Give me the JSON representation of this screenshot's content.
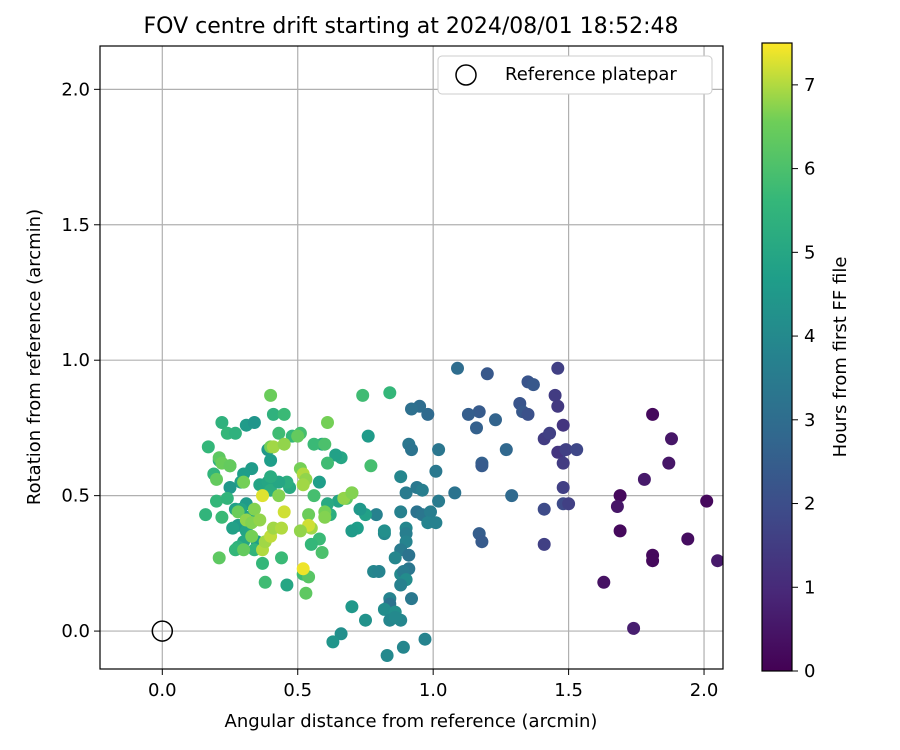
{
  "chart_data": {
    "type": "scatter",
    "title": "FOV centre drift starting at 2024/08/01 18:52:48",
    "xlabel": "Angular distance from reference (arcmin)",
    "ylabel": "Rotation from reference (arcmin)",
    "xlim": [
      -0.23,
      2.07
    ],
    "ylim": [
      -0.14,
      2.16
    ],
    "xticks": [
      0.0,
      0.5,
      1.0,
      1.5,
      2.0
    ],
    "yticks": [
      0.0,
      0.5,
      1.0,
      1.5,
      2.0
    ],
    "xtick_labels": [
      "0.0",
      "0.5",
      "1.0",
      "1.5",
      "2.0"
    ],
    "ytick_labels": [
      "0.0",
      "0.5",
      "1.0",
      "1.5",
      "2.0"
    ],
    "grid": true,
    "legend": {
      "placement": "top-right",
      "entries": [
        "Reference platepar"
      ]
    },
    "colorbar": {
      "label": "Hours from first FF file",
      "range": [
        0,
        7.5
      ],
      "ticks": [
        0,
        1,
        2,
        3,
        4,
        5,
        6,
        7
      ],
      "tick_labels": [
        "0",
        "1",
        "2",
        "3",
        "4",
        "5",
        "6",
        "7"
      ],
      "colormap": "viridis"
    },
    "reference_point": {
      "name": "Reference platepar",
      "x": 0.0,
      "y": 0.0
    },
    "series": [
      {
        "points": [
          [
            1.81,
            0.8,
            0.2
          ],
          [
            1.88,
            0.71,
            0.5
          ],
          [
            1.87,
            0.62,
            0.5
          ],
          [
            1.78,
            0.56,
            0.6
          ],
          [
            1.69,
            0.5,
            0.2
          ],
          [
            1.68,
            0.46,
            0.5
          ],
          [
            2.01,
            0.48,
            0.2
          ],
          [
            2.05,
            0.26,
            0.6
          ],
          [
            1.69,
            0.37,
            0.2
          ],
          [
            1.81,
            0.28,
            0.2
          ],
          [
            1.81,
            0.26,
            0.2
          ],
          [
            1.94,
            0.34,
            0.3
          ],
          [
            1.63,
            0.18,
            0.4
          ],
          [
            1.74,
            0.01,
            0.7
          ],
          [
            1.46,
            0.97,
            1.6
          ],
          [
            1.45,
            0.87,
            1.5
          ],
          [
            1.46,
            0.83,
            1.4
          ],
          [
            1.48,
            0.76,
            1.3
          ],
          [
            1.41,
            0.71,
            1.5
          ],
          [
            1.43,
            0.73,
            1.6
          ],
          [
            1.47,
            0.66,
            1.8
          ],
          [
            1.46,
            0.66,
            1.3
          ],
          [
            1.48,
            0.62,
            1.5
          ],
          [
            1.49,
            0.67,
            1.6
          ],
          [
            1.53,
            0.67,
            1.8
          ],
          [
            1.48,
            0.53,
            1.6
          ],
          [
            1.48,
            0.47,
            1.9
          ],
          [
            1.5,
            0.47,
            1.6
          ],
          [
            1.41,
            0.45,
            1.9
          ],
          [
            1.41,
            0.32,
            1.6
          ],
          [
            1.35,
            0.92,
            2.2
          ],
          [
            1.37,
            0.91,
            2.3
          ],
          [
            1.32,
            0.84,
            2.2
          ],
          [
            1.33,
            0.81,
            2.3
          ],
          [
            1.35,
            0.8,
            2.1
          ],
          [
            1.2,
            0.95,
            2.3
          ],
          [
            1.17,
            0.81,
            2.4
          ],
          [
            1.13,
            0.8,
            2.5
          ],
          [
            1.16,
            0.75,
            2.6
          ],
          [
            1.23,
            0.78,
            2.7
          ],
          [
            1.18,
            0.62,
            2.6
          ],
          [
            1.18,
            0.61,
            2.4
          ],
          [
            1.27,
            0.67,
            2.8
          ],
          [
            1.29,
            0.5,
            2.9
          ],
          [
            1.17,
            0.36,
            2.5
          ],
          [
            1.18,
            0.33,
            2.4
          ],
          [
            1.09,
            0.97,
            3.0
          ],
          [
            1.08,
            0.51,
            3.2
          ],
          [
            1.02,
            0.67,
            3.3
          ],
          [
            1.01,
            0.59,
            3.4
          ],
          [
            1.02,
            0.48,
            3.5
          ],
          [
            0.98,
            0.8,
            2.9
          ],
          [
            0.95,
            0.83,
            3.0
          ],
          [
            0.92,
            0.82,
            3.1
          ],
          [
            0.91,
            0.69,
            3.3
          ],
          [
            0.92,
            0.67,
            3.2
          ],
          [
            0.9,
            0.51,
            3.5
          ],
          [
            0.94,
            0.53,
            3.4
          ],
          [
            0.96,
            0.52,
            3.6
          ],
          [
            0.94,
            0.44,
            3.2
          ],
          [
            0.96,
            0.43,
            3.3
          ],
          [
            0.99,
            0.44,
            3.6
          ],
          [
            0.98,
            0.4,
            3.8
          ],
          [
            1.01,
            0.4,
            3.7
          ],
          [
            0.88,
            0.57,
            3.9
          ],
          [
            0.88,
            0.44,
            3.7
          ],
          [
            0.9,
            0.38,
            3.9
          ],
          [
            0.9,
            0.36,
            3.6
          ],
          [
            0.9,
            0.33,
            3.8
          ],
          [
            0.88,
            0.3,
            3.5
          ],
          [
            0.91,
            0.28,
            3.2
          ],
          [
            0.86,
            0.27,
            3.9
          ],
          [
            0.91,
            0.23,
            3.3
          ],
          [
            0.88,
            0.21,
            4.0
          ],
          [
            0.89,
            0.22,
            3.5
          ],
          [
            0.9,
            0.19,
            4.1
          ],
          [
            0.88,
            0.17,
            3.7
          ],
          [
            0.84,
            0.12,
            3.8
          ],
          [
            0.84,
            0.1,
            3.2
          ],
          [
            0.82,
            0.08,
            4.1
          ],
          [
            0.78,
            0.22,
            3.9
          ],
          [
            0.8,
            0.22,
            3.8
          ],
          [
            0.82,
            0.36,
            4.0
          ],
          [
            0.82,
            0.37,
            4.2
          ],
          [
            0.79,
            0.43,
            3.7
          ],
          [
            0.86,
            0.07,
            4.2
          ],
          [
            0.88,
            0.04,
            3.9
          ],
          [
            0.84,
            0.04,
            3.9
          ],
          [
            0.86,
            0.05,
            4.0
          ],
          [
            0.92,
            0.12,
            3.4
          ],
          [
            0.97,
            -0.03,
            3.8
          ],
          [
            0.89,
            -0.06,
            3.9
          ],
          [
            0.83,
            -0.09,
            4.0
          ],
          [
            0.66,
            -0.01,
            4.2
          ],
          [
            0.63,
            -0.04,
            4.4
          ],
          [
            0.75,
            0.04,
            4.3
          ],
          [
            0.7,
            0.09,
            4.5
          ],
          [
            0.76,
            0.72,
            4.6
          ],
          [
            0.75,
            0.43,
            4.8
          ],
          [
            0.72,
            0.38,
            4.7
          ],
          [
            0.7,
            0.37,
            4.6
          ],
          [
            0.73,
            0.45,
            4.5
          ],
          [
            0.65,
            0.48,
            4.9
          ],
          [
            0.61,
            0.47,
            5.1
          ],
          [
            0.62,
            0.43,
            5.3
          ],
          [
            0.66,
            0.64,
            5.0
          ],
          [
            0.64,
            0.65,
            4.8
          ],
          [
            0.59,
            0.69,
            5.1
          ],
          [
            0.58,
            0.55,
            4.7
          ],
          [
            0.31,
            0.76,
            4.6
          ],
          [
            0.34,
            0.77,
            4.4
          ],
          [
            0.39,
            0.67,
            4.5
          ],
          [
            0.4,
            0.63,
            4.7
          ],
          [
            0.33,
            0.6,
            4.6
          ],
          [
            0.3,
            0.58,
            4.7
          ],
          [
            0.29,
            0.55,
            4.8
          ],
          [
            0.25,
            0.53,
            4.5
          ],
          [
            0.36,
            0.54,
            4.9
          ],
          [
            0.39,
            0.55,
            5.0
          ],
          [
            0.31,
            0.47,
            4.6
          ],
          [
            0.27,
            0.45,
            4.8
          ],
          [
            0.29,
            0.45,
            4.9
          ],
          [
            0.32,
            0.42,
            4.7
          ],
          [
            0.28,
            0.39,
            4.6
          ],
          [
            0.26,
            0.38,
            4.8
          ],
          [
            0.31,
            0.37,
            4.9
          ],
          [
            0.3,
            0.33,
            5.0
          ],
          [
            0.35,
            0.33,
            4.7
          ],
          [
            0.33,
            0.42,
            5.1
          ],
          [
            0.4,
            0.52,
            5.2
          ],
          [
            0.47,
            0.53,
            5.1
          ],
          [
            0.46,
            0.55,
            5.3
          ],
          [
            0.43,
            0.55,
            5.0
          ],
          [
            0.4,
            0.57,
            5.2
          ],
          [
            0.22,
            0.77,
            5.4
          ],
          [
            0.24,
            0.73,
            5.6
          ],
          [
            0.27,
            0.73,
            5.4
          ],
          [
            0.21,
            0.63,
            5.2
          ],
          [
            0.25,
            0.61,
            5.3
          ],
          [
            0.19,
            0.58,
            5.5
          ],
          [
            0.17,
            0.68,
            5.6
          ],
          [
            0.2,
            0.48,
            5.6
          ],
          [
            0.16,
            0.43,
            5.5
          ],
          [
            0.24,
            0.49,
            5.5
          ],
          [
            0.22,
            0.42,
            5.7
          ],
          [
            0.28,
            0.31,
            5.4
          ],
          [
            0.27,
            0.3,
            5.6
          ],
          [
            0.34,
            0.3,
            5.5
          ],
          [
            0.37,
            0.25,
            5.6
          ],
          [
            0.44,
            0.27,
            5.7
          ],
          [
            0.38,
            0.18,
            5.8
          ],
          [
            0.46,
            0.17,
            5.0
          ],
          [
            0.52,
            0.21,
            5.8
          ],
          [
            0.54,
            0.2,
            6.2
          ],
          [
            0.53,
            0.14,
            6.3
          ],
          [
            0.41,
            0.8,
            5.4
          ],
          [
            0.45,
            0.8,
            5.7
          ],
          [
            0.43,
            0.73,
            5.8
          ],
          [
            0.48,
            0.72,
            5.6
          ],
          [
            0.51,
            0.73,
            5.9
          ],
          [
            0.56,
            0.69,
            5.7
          ],
          [
            0.6,
            0.69,
            6.0
          ],
          [
            0.56,
            0.5,
            5.9
          ],
          [
            0.58,
            0.34,
            5.7
          ],
          [
            0.55,
            0.32,
            5.6
          ],
          [
            0.59,
            0.29,
            6.0
          ],
          [
            0.61,
            0.62,
            5.8
          ],
          [
            0.77,
            0.61,
            5.9
          ],
          [
            0.74,
            0.87,
            5.8
          ],
          [
            0.84,
            0.88,
            5.6
          ],
          [
            0.7,
            0.51,
            6.2
          ],
          [
            0.68,
            0.49,
            6.3
          ],
          [
            0.21,
            0.27,
            6.3
          ],
          [
            0.2,
            0.56,
            6.4
          ],
          [
            0.21,
            0.64,
            6.3
          ],
          [
            0.22,
            0.62,
            6.5
          ],
          [
            0.25,
            0.61,
            6.4
          ],
          [
            0.3,
            0.55,
            6.6
          ],
          [
            0.28,
            0.44,
            6.5
          ],
          [
            0.31,
            0.41,
            6.8
          ],
          [
            0.33,
            0.4,
            6.7
          ],
          [
            0.33,
            0.35,
            6.6
          ],
          [
            0.3,
            0.3,
            6.4
          ],
          [
            0.34,
            0.45,
            6.7
          ],
          [
            0.36,
            0.41,
            6.8
          ],
          [
            0.37,
            0.3,
            7.0
          ],
          [
            0.38,
            0.33,
            6.9
          ],
          [
            0.4,
            0.35,
            7.1
          ],
          [
            0.41,
            0.38,
            6.9
          ],
          [
            0.44,
            0.38,
            7.0
          ],
          [
            0.45,
            0.44,
            7.2
          ],
          [
            0.43,
            0.5,
            6.7
          ],
          [
            0.4,
            0.68,
            6.6
          ],
          [
            0.41,
            0.68,
            6.9
          ],
          [
            0.45,
            0.69,
            6.8
          ],
          [
            0.4,
            0.87,
            6.5
          ],
          [
            0.37,
            0.5,
            7.3
          ],
          [
            0.5,
            0.72,
            6.4
          ],
          [
            0.51,
            0.6,
            6.6
          ],
          [
            0.52,
            0.58,
            7.0
          ],
          [
            0.53,
            0.56,
            6.8
          ],
          [
            0.52,
            0.54,
            6.9
          ],
          [
            0.54,
            0.43,
            6.5
          ],
          [
            0.55,
            0.38,
            6.9
          ],
          [
            0.54,
            0.39,
            7.2
          ],
          [
            0.51,
            0.37,
            6.8
          ],
          [
            0.52,
            0.23,
            7.4
          ],
          [
            0.6,
            0.44,
            6.6
          ],
          [
            0.6,
            0.42,
            6.7
          ],
          [
            0.61,
            0.77,
            6.6
          ],
          [
            0.67,
            0.49,
            6.8
          ],
          [
            0.7,
            0.51,
            6.7
          ]
        ]
      }
    ]
  }
}
